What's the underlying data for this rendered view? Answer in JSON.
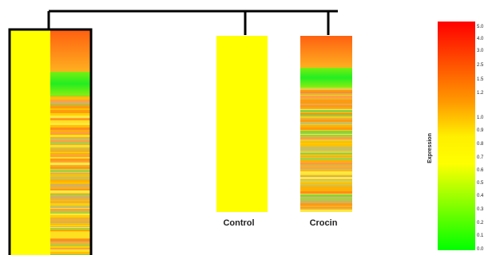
{
  "chart_data": {
    "type": "heatmap",
    "title": "",
    "columns": [
      {
        "label": "Control",
        "top_block_value": 1.0
      },
      {
        "label": "Crocin",
        "top_block_value": 2.3,
        "green_block_value": 0.15
      }
    ],
    "colorbar": {
      "title": "Expression",
      "ticks": [
        "5.0",
        "4.0",
        "3.0",
        "2.5",
        "1.5",
        "1.2",
        "1.0",
        "0.9",
        "0.8",
        "0.7",
        "0.6",
        "0.5",
        "0.4",
        "0.3",
        "0.2",
        "0.1",
        "0.0"
      ],
      "low_color": "#00ff00",
      "mid_color": "#ffff00",
      "high_color": "#ff0000"
    },
    "colors": {
      "yellow": "#ffff00",
      "orange": "#ff8c00",
      "red": "#ff0000",
      "green": "#22ee22",
      "dendrogram": "#000000"
    }
  }
}
